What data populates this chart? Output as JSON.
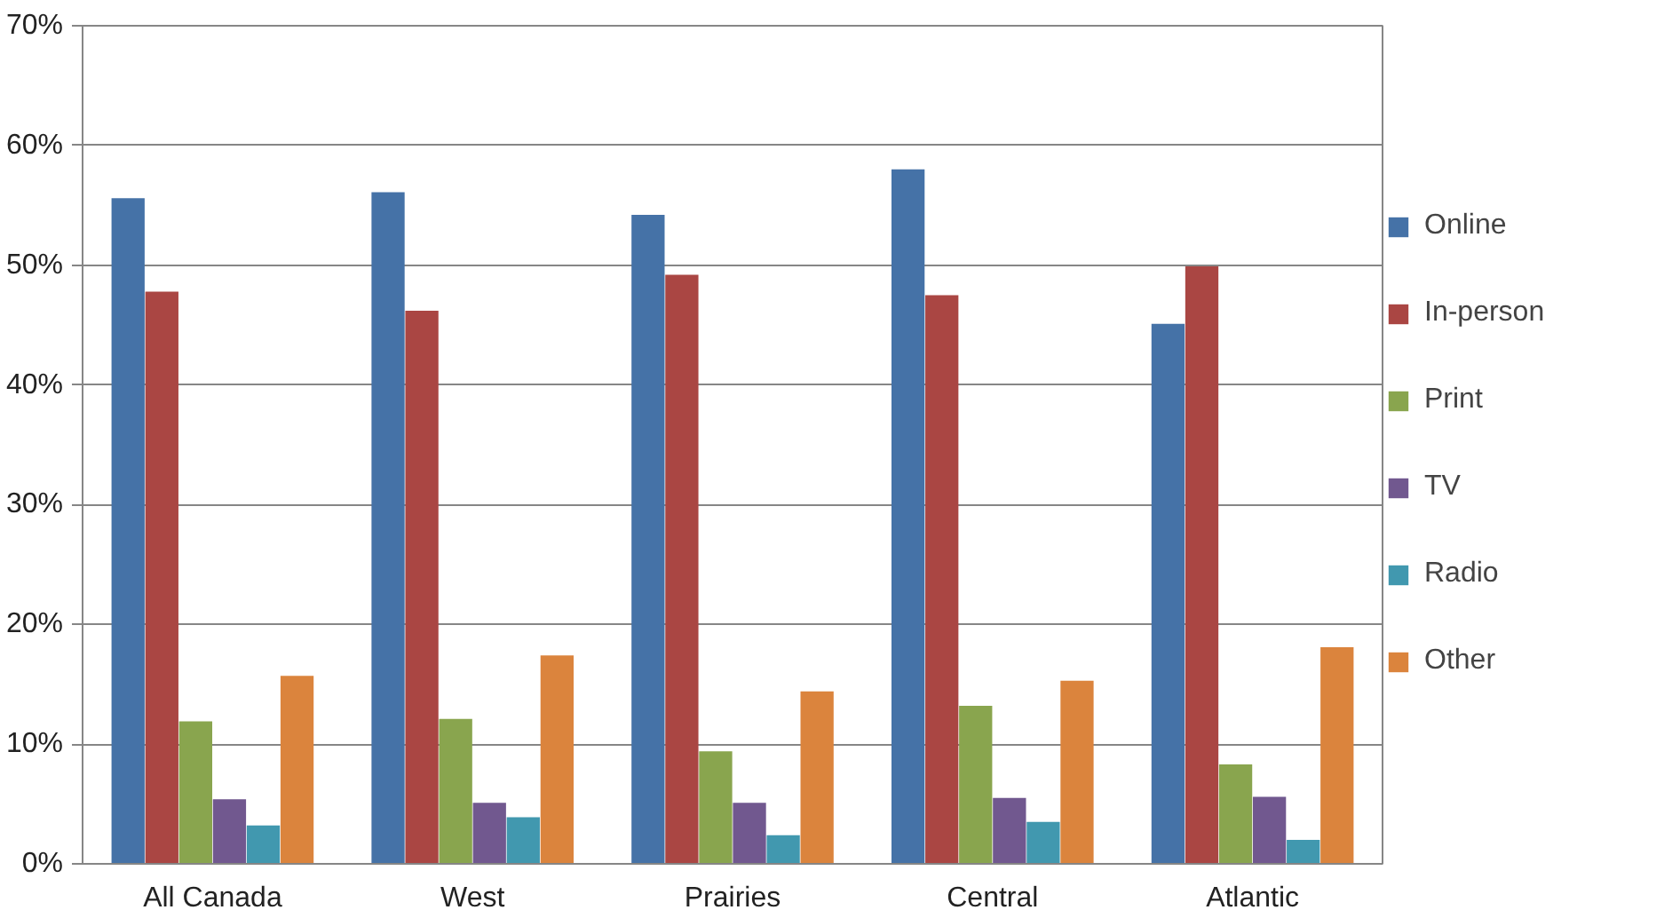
{
  "chart_data": {
    "type": "bar",
    "categories": [
      "All Canada",
      "West",
      "Prairies",
      "Central",
      "Atlantic"
    ],
    "series": [
      {
        "name": "Online",
        "color": "#4572a7",
        "values": [
          55.6,
          56.1,
          54.2,
          58.0,
          45.1
        ]
      },
      {
        "name": "In-person",
        "color": "#aa4643",
        "values": [
          47.8,
          46.2,
          49.2,
          47.5,
          49.9
        ]
      },
      {
        "name": "Print",
        "color": "#89a54e",
        "values": [
          11.9,
          12.1,
          9.4,
          13.2,
          8.3
        ]
      },
      {
        "name": "TV",
        "color": "#71588f",
        "values": [
          5.4,
          5.1,
          5.1,
          5.5,
          5.6
        ]
      },
      {
        "name": "Radio",
        "color": "#4198af",
        "values": [
          3.2,
          3.9,
          2.4,
          3.5,
          2.0
        ]
      },
      {
        "name": "Other",
        "color": "#db843d",
        "values": [
          15.7,
          17.4,
          14.4,
          15.3,
          18.1
        ]
      }
    ],
    "ylim": [
      0,
      70
    ],
    "yticks": [
      {
        "value": 0,
        "label": "0%"
      },
      {
        "value": 10,
        "label": "10%"
      },
      {
        "value": 20,
        "label": "20%"
      },
      {
        "value": 30,
        "label": "30%"
      },
      {
        "value": 40,
        "label": "40%"
      },
      {
        "value": 50,
        "label": "50%"
      },
      {
        "value": 60,
        "label": "60%"
      },
      {
        "value": 70,
        "label": "70%"
      }
    ],
    "grid": "y",
    "legend": "right"
  }
}
